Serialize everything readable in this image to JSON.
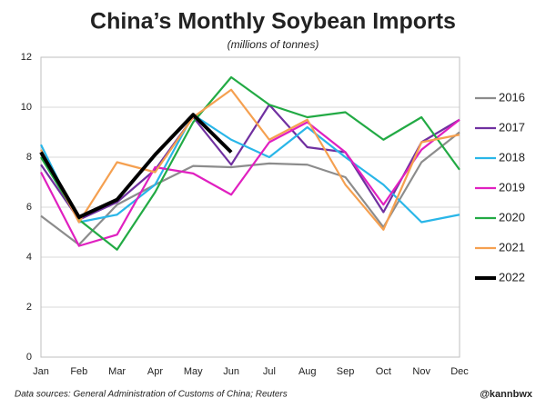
{
  "chart_data": {
    "type": "line",
    "title": "China’s Monthly Soybean Imports",
    "subtitle": "(millions of tonnes)",
    "categories": [
      "Jan",
      "Feb",
      "Mar",
      "Apr",
      "May",
      "Jun",
      "Jul",
      "Aug",
      "Sep",
      "Oct",
      "Nov",
      "Dec"
    ],
    "series": [
      {
        "name": "2016",
        "color": "#8c8c8c",
        "values": [
          5.65,
          4.5,
          6.1,
          6.9,
          7.65,
          7.6,
          7.75,
          7.7,
          7.2,
          5.2,
          7.8,
          9.0
        ]
      },
      {
        "name": "2017",
        "color": "#7030a0",
        "values": [
          7.7,
          5.5,
          6.2,
          7.5,
          9.6,
          7.7,
          10.1,
          8.4,
          8.2,
          5.8,
          8.6,
          9.5
        ]
      },
      {
        "name": "2018",
        "color": "#29b6e8",
        "values": [
          8.5,
          5.4,
          5.7,
          6.9,
          9.7,
          8.7,
          8.0,
          9.2,
          8.0,
          6.9,
          5.4,
          5.7
        ]
      },
      {
        "name": "2019",
        "color": "#e020c0",
        "values": [
          7.4,
          4.45,
          4.9,
          7.6,
          7.35,
          6.5,
          8.6,
          9.4,
          8.2,
          6.1,
          8.3,
          9.5
        ]
      },
      {
        "name": "2020",
        "color": "#22aa44",
        "values": [
          8.0,
          5.5,
          4.3,
          6.6,
          9.4,
          11.2,
          10.1,
          9.6,
          9.8,
          8.7,
          9.6,
          7.5
        ]
      },
      {
        "name": "2021",
        "color": "#f5a050",
        "values": [
          8.3,
          5.4,
          7.8,
          7.4,
          9.6,
          10.7,
          8.7,
          9.5,
          6.9,
          5.1,
          8.6,
          8.9
        ]
      },
      {
        "name": "2022",
        "color": "#000000",
        "values": [
          8.2,
          5.6,
          6.3,
          8.1,
          9.7,
          8.2,
          null,
          null,
          null,
          null,
          null,
          null
        ]
      }
    ],
    "ylim": [
      0,
      12
    ],
    "yticks": [
      0,
      2,
      4,
      6,
      8,
      10,
      12
    ],
    "grid": true,
    "legend": "right",
    "source": "Data sources: General Administration of Customs of China; Reuters",
    "credit": "@kannbwx"
  }
}
